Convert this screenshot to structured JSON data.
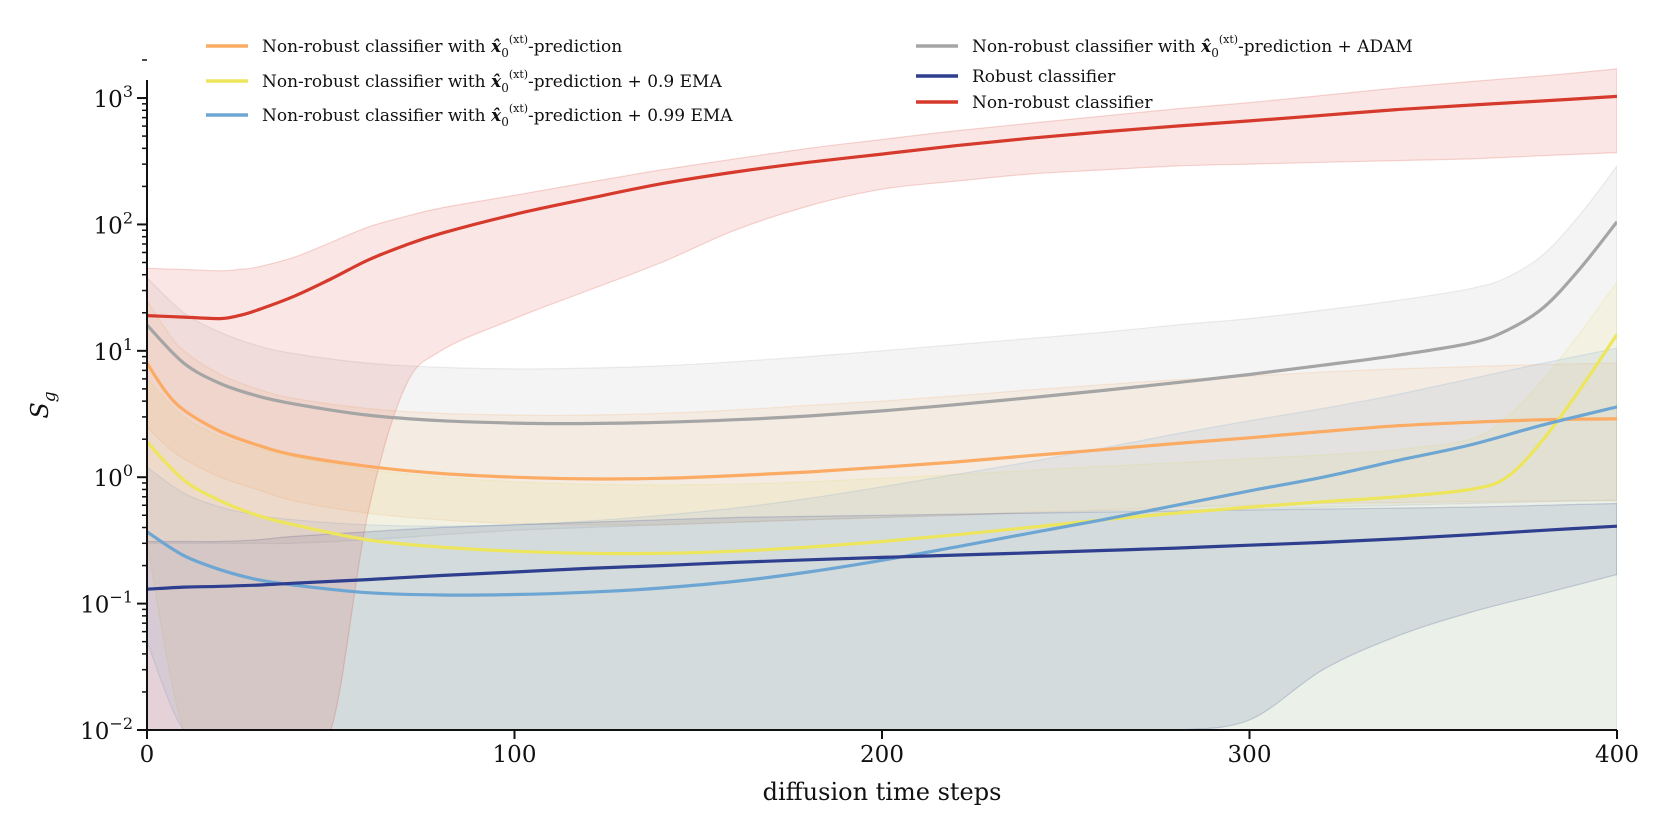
{
  "chart_data": {
    "type": "line",
    "title": "",
    "xlabel": "diffusion time steps",
    "ylabel_main": "S",
    "ylabel_sub": "g",
    "yscale": "log",
    "xlim": [
      0,
      400
    ],
    "ylim": [
      0.01,
      2000
    ],
    "xticks": [
      0,
      100,
      200,
      300,
      400
    ],
    "xtick_labels": [
      "0",
      "100",
      "200",
      "300",
      "400"
    ],
    "yticks": [
      {
        "value": 1000,
        "base": "10",
        "exp": "3"
      },
      {
        "value": 100,
        "base": "10",
        "exp": "2"
      },
      {
        "value": 10,
        "base": "10",
        "exp": "1"
      },
      {
        "value": 1,
        "base": "10",
        "exp": "0"
      },
      {
        "value": 0.1,
        "base": "10",
        "exp": "−1"
      },
      {
        "value": 0.01,
        "base": "10",
        "exp": "−2"
      }
    ],
    "series": [
      {
        "name": "Non-robust classifier with x̂0(xt)-prediction",
        "legend": {
          "pre": "Non-robust classifier with ",
          "sym": "x̂",
          "sub": "0",
          "sup": "(xt)",
          "post": "-prediction"
        },
        "color": "#fbab63",
        "x": [
          0,
          5,
          10,
          20,
          30,
          40,
          60,
          80,
          100,
          120,
          140,
          160,
          180,
          200,
          220,
          240,
          260,
          280,
          300,
          320,
          340,
          360,
          380,
          400
        ],
        "y": [
          8,
          4.8,
          3.4,
          2.3,
          1.8,
          1.5,
          1.22,
          1.07,
          1.0,
          0.97,
          0.98,
          1.03,
          1.1,
          1.2,
          1.32,
          1.48,
          1.65,
          1.85,
          2.05,
          2.3,
          2.55,
          2.72,
          2.85,
          2.9
        ],
        "upper": [
          25,
          15,
          10,
          6.5,
          5,
          4.2,
          3.5,
          3.2,
          3.1,
          3.1,
          3.2,
          3.4,
          3.7,
          4.0,
          4.4,
          4.9,
          5.4,
          5.9,
          6.3,
          6.8,
          7.2,
          7.5,
          7.8,
          8.0
        ],
        "lower": [
          2.5,
          1.8,
          1.4,
          1.0,
          0.8,
          0.65,
          0.52,
          0.46,
          0.43,
          0.42,
          0.42,
          0.44,
          0.46,
          0.48,
          0.5,
          0.53,
          0.55,
          0.58,
          0.6,
          0.62,
          0.63,
          0.64,
          0.65,
          0.65
        ]
      },
      {
        "name": "Non-robust classifier with x̂0(xt)-prediction + 0.9 EMA",
        "legend": {
          "pre": "Non-robust classifier with ",
          "sym": "x̂",
          "sub": "0",
          "sup": "(xt)",
          "post": "-prediction + 0.9 EMA"
        },
        "color": "#ede55c",
        "x": [
          0,
          10,
          20,
          30,
          40,
          60,
          80,
          100,
          120,
          140,
          160,
          180,
          200,
          220,
          240,
          260,
          280,
          300,
          320,
          340,
          360,
          370,
          380,
          390,
          400
        ],
        "y": [
          1.9,
          0.95,
          0.65,
          0.5,
          0.42,
          0.32,
          0.28,
          0.26,
          0.25,
          0.25,
          0.26,
          0.28,
          0.31,
          0.35,
          0.4,
          0.46,
          0.52,
          0.58,
          0.64,
          0.7,
          0.8,
          1.0,
          2.0,
          5.0,
          13.5
        ],
        "upper": [
          6,
          3,
          2.1,
          1.7,
          1.45,
          1.15,
          1.0,
          0.92,
          0.88,
          0.87,
          0.88,
          0.92,
          0.98,
          1.05,
          1.13,
          1.22,
          1.3,
          1.4,
          1.5,
          1.65,
          2.0,
          3.0,
          6.0,
          14,
          35
        ],
        "lower": [
          0.3,
          0.01,
          0.01,
          0.01,
          0.01,
          0.01,
          0.01,
          0.01,
          0.01,
          0.01,
          0.01,
          0.01,
          0.01,
          0.01,
          0.01,
          0.01,
          0.01,
          0.01,
          0.01,
          0.01,
          0.01,
          0.01,
          0.01,
          0.01,
          0.01
        ]
      },
      {
        "name": "Non-robust classifier with x̂0(xt)-prediction + 0.99 EMA",
        "legend": {
          "pre": "Non-robust classifier with ",
          "sym": "x̂",
          "sub": "0",
          "sup": "(xt)",
          "post": "-prediction + 0.99 EMA"
        },
        "color": "#6ea6d3",
        "x": [
          0,
          10,
          20,
          30,
          40,
          60,
          80,
          100,
          120,
          140,
          160,
          180,
          200,
          220,
          240,
          260,
          280,
          300,
          320,
          340,
          360,
          380,
          400
        ],
        "y": [
          0.37,
          0.24,
          0.185,
          0.155,
          0.14,
          0.122,
          0.117,
          0.118,
          0.123,
          0.133,
          0.15,
          0.178,
          0.22,
          0.28,
          0.36,
          0.46,
          0.6,
          0.78,
          1.0,
          1.35,
          1.8,
          2.6,
          3.6
        ],
        "upper": [
          1.2,
          0.75,
          0.58,
          0.5,
          0.46,
          0.42,
          0.41,
          0.42,
          0.45,
          0.5,
          0.57,
          0.68,
          0.84,
          1.05,
          1.32,
          1.7,
          2.2,
          2.8,
          3.5,
          4.5,
          6.0,
          8.0,
          10.5
        ],
        "lower": [
          0.05,
          0.01,
          0.01,
          0.01,
          0.01,
          0.01,
          0.01,
          0.01,
          0.01,
          0.01,
          0.01,
          0.01,
          0.01,
          0.01,
          0.01,
          0.01,
          0.01,
          0.01,
          0.01,
          0.01,
          0.01,
          0.01,
          0.01
        ]
      },
      {
        "name": "Non-robust classifier with x̂0(xt)-prediction + ADAM",
        "legend": {
          "pre": "Non-robust classifier with ",
          "sym": "x̂",
          "sub": "0",
          "sup": "(xt)",
          "post": "-prediction + ADAM"
        },
        "color": "#a5a5a5",
        "x": [
          0,
          10,
          20,
          30,
          40,
          60,
          80,
          100,
          120,
          140,
          160,
          180,
          200,
          220,
          240,
          260,
          280,
          300,
          320,
          340,
          360,
          370,
          380,
          390,
          400
        ],
        "y": [
          16,
          8,
          5.5,
          4.4,
          3.8,
          3.1,
          2.8,
          2.68,
          2.66,
          2.72,
          2.85,
          3.05,
          3.35,
          3.75,
          4.25,
          4.85,
          5.6,
          6.5,
          7.7,
          9.2,
          11.5,
          14.5,
          22,
          45,
          105
        ],
        "upper": [
          38,
          20,
          14,
          11,
          9.5,
          8,
          7.4,
          7.2,
          7.3,
          7.6,
          8.2,
          9.0,
          10,
          11.2,
          12.5,
          14,
          16,
          18,
          21,
          25,
          31,
          38,
          58,
          120,
          290
        ],
        "lower": [
          0.3,
          0.3,
          0.3,
          0.3,
          0.3,
          0.32,
          0.35,
          0.38,
          0.4,
          0.42,
          0.44,
          0.46,
          0.48,
          0.5,
          0.52,
          0.54,
          0.55,
          0.56,
          0.58,
          0.6,
          0.62,
          0.63,
          0.64,
          0.65,
          0.66
        ]
      },
      {
        "name": "Robust classifier",
        "legend": {
          "pre": "Robust classifier",
          "sym": "",
          "sub": "",
          "sup": "",
          "post": ""
        },
        "color": "#2f3f8f",
        "x": [
          0,
          10,
          20,
          30,
          40,
          60,
          80,
          100,
          120,
          140,
          160,
          180,
          200,
          220,
          240,
          260,
          280,
          300,
          320,
          340,
          360,
          380,
          400
        ],
        "y": [
          0.13,
          0.135,
          0.137,
          0.14,
          0.145,
          0.155,
          0.167,
          0.178,
          0.19,
          0.2,
          0.212,
          0.222,
          0.232,
          0.242,
          0.252,
          0.263,
          0.275,
          0.29,
          0.305,
          0.325,
          0.35,
          0.38,
          0.41
        ],
        "upper": [
          0.31,
          0.31,
          0.31,
          0.32,
          0.34,
          0.37,
          0.4,
          0.42,
          0.44,
          0.46,
          0.48,
          0.49,
          0.5,
          0.51,
          0.52,
          0.53,
          0.54,
          0.55,
          0.56,
          0.57,
          0.58,
          0.6,
          0.62
        ],
        "lower": [
          0.01,
          0.01,
          0.01,
          0.01,
          0.01,
          0.01,
          0.01,
          0.01,
          0.01,
          0.01,
          0.01,
          0.01,
          0.01,
          0.01,
          0.01,
          0.01,
          0.01,
          0.012,
          0.03,
          0.055,
          0.085,
          0.12,
          0.17
        ]
      },
      {
        "name": "Non-robust classifier",
        "legend": {
          "pre": "Non-robust classifier",
          "sym": "",
          "sub": "",
          "sup": "",
          "post": ""
        },
        "color": "#d63a2c",
        "x": [
          0,
          10,
          20,
          25,
          30,
          40,
          50,
          60,
          70,
          80,
          100,
          120,
          140,
          160,
          180,
          200,
          220,
          240,
          260,
          280,
          300,
          320,
          340,
          360,
          380,
          400
        ],
        "y": [
          19,
          18.5,
          18,
          19,
          21,
          27,
          37,
          52,
          68,
          85,
          120,
          160,
          210,
          260,
          310,
          360,
          420,
          480,
          540,
          600,
          660,
          730,
          810,
          880,
          950,
          1030
        ],
        "upper": [
          45,
          44,
          43,
          44,
          46,
          55,
          72,
          95,
          115,
          135,
          170,
          215,
          270,
          330,
          400,
          470,
          550,
          630,
          720,
          820,
          920,
          1050,
          1200,
          1350,
          1500,
          1700
        ],
        "lower": [
          0.01,
          0.01,
          0.01,
          0.01,
          0.01,
          0.01,
          0.01,
          0.5,
          5,
          10,
          18,
          30,
          50,
          90,
          140,
          190,
          220,
          250,
          270,
          290,
          300,
          310,
          320,
          330,
          350,
          370
        ]
      }
    ],
    "legend_placement": "top"
  }
}
